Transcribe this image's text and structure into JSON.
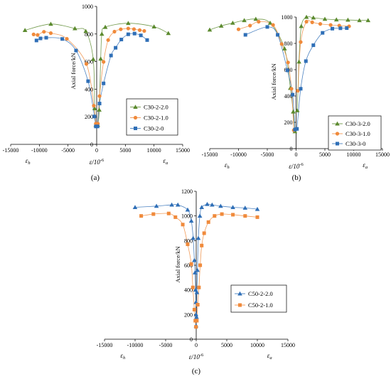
{
  "chart_data": [
    {
      "type": "scatter",
      "caption": "(a)",
      "ylabel": "Axial force/kN",
      "xlabel": "ε/10",
      "xlabel_sup": "-6",
      "left_strain_label": "εh",
      "right_strain_label": "εa",
      "xlim": [
        -15000,
        15000
      ],
      "ylim": [
        0,
        1000
      ],
      "xticks": [
        -15000,
        -10000,
        -5000,
        0,
        5000,
        10000,
        15000
      ],
      "yticks": [
        0,
        200,
        400,
        600,
        800,
        1000
      ],
      "x_tick_labels": [
        "-15000",
        "-10000",
        "-5000",
        "0",
        "5000",
        "10000",
        "15000"
      ],
      "y_tick_labels": [
        "0",
        "200",
        "400",
        "600",
        "800",
        "1000"
      ],
      "legend_position": "right",
      "series": [
        {
          "name": "C30-2-2.0",
          "marker": "triangle",
          "color": "#5b8a2e",
          "points": [
            [
              -12500,
              827
            ],
            [
              -8000,
              872
            ],
            [
              -3800,
              840
            ],
            [
              -1900,
              820
            ],
            [
              -600,
              617
            ],
            [
              -350,
              260
            ],
            [
              -150,
              140
            ],
            [
              200,
              140
            ],
            [
              450,
              250
            ],
            [
              700,
              620
            ],
            [
              900,
              800
            ],
            [
              1500,
              850
            ],
            [
              5500,
              878
            ],
            [
              10000,
              853
            ],
            [
              12500,
              805
            ]
          ]
        },
        {
          "name": "C30-2-1.0",
          "marker": "circle",
          "color": "#f08a3b",
          "points": [
            [
              -11000,
              797
            ],
            [
              -10300,
              793
            ],
            [
              -9200,
              816
            ],
            [
              -8000,
              806
            ],
            [
              -5200,
              765
            ],
            [
              -1800,
              583
            ],
            [
              -500,
              280
            ],
            [
              -150,
              150
            ],
            [
              200,
              150
            ],
            [
              500,
              350
            ],
            [
              1200,
              598
            ],
            [
              2000,
              756
            ],
            [
              3100,
              817
            ],
            [
              4200,
              834
            ],
            [
              5500,
              840
            ],
            [
              6500,
              835
            ],
            [
              7500,
              828
            ],
            [
              8300,
              822
            ]
          ]
        },
        {
          "name": "C30-2-0",
          "marker": "square",
          "color": "#2f6fb7",
          "points": [
            [
              -10500,
              753
            ],
            [
              -9800,
              768
            ],
            [
              -8800,
              773
            ],
            [
              -6000,
              764
            ],
            [
              -3600,
              680
            ],
            [
              -1500,
              458
            ],
            [
              -400,
              202
            ],
            [
              -150,
              130
            ],
            [
              150,
              130
            ],
            [
              500,
              296
            ],
            [
              1200,
              442
            ],
            [
              2500,
              644
            ],
            [
              3300,
              700
            ],
            [
              4300,
              760
            ],
            [
              5500,
              798
            ],
            [
              6600,
              803
            ],
            [
              7700,
              790
            ],
            [
              8800,
              756
            ]
          ]
        }
      ]
    },
    {
      "type": "scatter",
      "caption": "(b)",
      "ylabel": "Axial force/kN",
      "xlabel": "ε/10",
      "xlabel_sup": "-6",
      "left_strain_label": "εh",
      "right_strain_label": "εa",
      "xlim": [
        -15000,
        15000
      ],
      "ylim": [
        0,
        1000
      ],
      "xticks": [
        -15000,
        -10000,
        -5000,
        0,
        5000,
        10000,
        15000
      ],
      "yticks": [
        0,
        200,
        400,
        600,
        800,
        1000
      ],
      "x_tick_labels": [
        "-15000",
        "-10000",
        "-5000",
        "0",
        "5000",
        "10000",
        "15000"
      ],
      "y_tick_labels": [
        "0",
        "200",
        "400",
        "600",
        "800",
        "1000"
      ],
      "legend_position": "right",
      "series": [
        {
          "name": "C30-3-2.0",
          "marker": "triangle",
          "color": "#5b8a2e",
          "points": [
            [
              -15000,
              903
            ],
            [
              -13000,
              933
            ],
            [
              -11000,
              955
            ],
            [
              -9000,
              975
            ],
            [
              -7000,
              985
            ],
            [
              -4500,
              955
            ],
            [
              -2000,
              760
            ],
            [
              -1000,
              460
            ],
            [
              -500,
              280
            ],
            [
              -200,
              130
            ],
            [
              200,
              290
            ],
            [
              500,
              660
            ],
            [
              900,
              930
            ],
            [
              1800,
              1000
            ],
            [
              3000,
              995
            ],
            [
              5000,
              985
            ],
            [
              7000,
              980
            ],
            [
              9000,
              978
            ],
            [
              11000,
              975
            ],
            [
              12500,
              975
            ]
          ]
        },
        {
          "name": "C30-3-1.0",
          "marker": "circle",
          "color": "#f08a3b",
          "points": [
            [
              -10000,
              907
            ],
            [
              -8000,
              935
            ],
            [
              -6500,
              965
            ],
            [
              -4000,
              940
            ],
            [
              -2500,
              795
            ],
            [
              -1400,
              655
            ],
            [
              -800,
              455
            ],
            [
              -400,
              140
            ],
            [
              300,
              440
            ],
            [
              800,
              810
            ],
            [
              1800,
              965
            ],
            [
              2800,
              960
            ],
            [
              4200,
              948
            ],
            [
              6000,
              940
            ],
            [
              7500,
              935
            ],
            [
              9200,
              930
            ]
          ]
        },
        {
          "name": "C30-3-0",
          "marker": "square",
          "color": "#2f6fb7",
          "points": [
            [
              -8800,
              865
            ],
            [
              -5000,
              925
            ],
            [
              -3200,
              865
            ],
            [
              -1500,
              595
            ],
            [
              -600,
              410
            ],
            [
              -200,
              145
            ],
            [
              150,
              150
            ],
            [
              800,
              455
            ],
            [
              1700,
              665
            ],
            [
              3000,
              786
            ],
            [
              4600,
              880
            ],
            [
              6300,
              912
            ],
            [
              7700,
              915
            ],
            [
              8800,
              916
            ]
          ]
        }
      ]
    },
    {
      "type": "scatter",
      "caption": "(c)",
      "ylabel": "Axial force/kN",
      "xlabel": "ε/10",
      "xlabel_sup": "-6",
      "left_strain_label": "εh",
      "right_strain_label": "εa",
      "xlim": [
        -15000,
        15000
      ],
      "ylim": [
        0,
        1200
      ],
      "xticks": [
        -15000,
        -10000,
        -5000,
        0,
        5000,
        10000,
        15000
      ],
      "yticks": [
        0,
        200,
        400,
        600,
        800,
        1000,
        1200
      ],
      "x_tick_labels": [
        "-15000",
        "-10000",
        "-5000",
        "0",
        "5000",
        "10000",
        "15000"
      ],
      "y_tick_labels": [
        "0",
        "200",
        "400",
        "600",
        "800",
        "1000",
        "1200"
      ],
      "legend_position": "right",
      "series": [
        {
          "name": "C50-2-2.0",
          "marker": "triangle",
          "color": "#2f6fb7",
          "points": [
            [
              -10000,
              1070
            ],
            [
              -6500,
              1080
            ],
            [
              -4000,
              1090
            ],
            [
              -3000,
              1090
            ],
            [
              -1400,
              1050
            ],
            [
              -800,
              960
            ],
            [
              -500,
              820
            ],
            [
              -300,
              640
            ],
            [
              -200,
              540
            ],
            [
              -100,
              400
            ],
            [
              -50,
              300
            ],
            [
              -30,
              200
            ],
            [
              -20,
              110
            ],
            [
              50,
              180
            ],
            [
              120,
              380
            ],
            [
              200,
              560
            ],
            [
              350,
              820
            ],
            [
              600,
              1000
            ],
            [
              900,
              1070
            ],
            [
              1800,
              1095
            ],
            [
              2600,
              1090
            ],
            [
              4000,
              1080
            ],
            [
              6000,
              1070
            ],
            [
              8000,
              1065
            ],
            [
              10000,
              1055
            ]
          ]
        },
        {
          "name": "C50-2-1.0",
          "marker": "square",
          "color": "#f08a3b",
          "points": [
            [
              -9000,
              1000
            ],
            [
              -7000,
              1015
            ],
            [
              -4500,
              1020
            ],
            [
              -3400,
              990
            ],
            [
              -2200,
              930
            ],
            [
              -1400,
              770
            ],
            [
              -800,
              610
            ],
            [
              -550,
              420
            ],
            [
              -300,
              240
            ],
            [
              -150,
              150
            ],
            [
              -40,
              100
            ],
            [
              100,
              150
            ],
            [
              250,
              280
            ],
            [
              450,
              420
            ],
            [
              650,
              600
            ],
            [
              900,
              760
            ],
            [
              1300,
              860
            ],
            [
              2000,
              950
            ],
            [
              3000,
              1000
            ],
            [
              4200,
              1015
            ],
            [
              6000,
              1010
            ],
            [
              8000,
              1000
            ],
            [
              10000,
              990
            ]
          ]
        }
      ]
    }
  ]
}
